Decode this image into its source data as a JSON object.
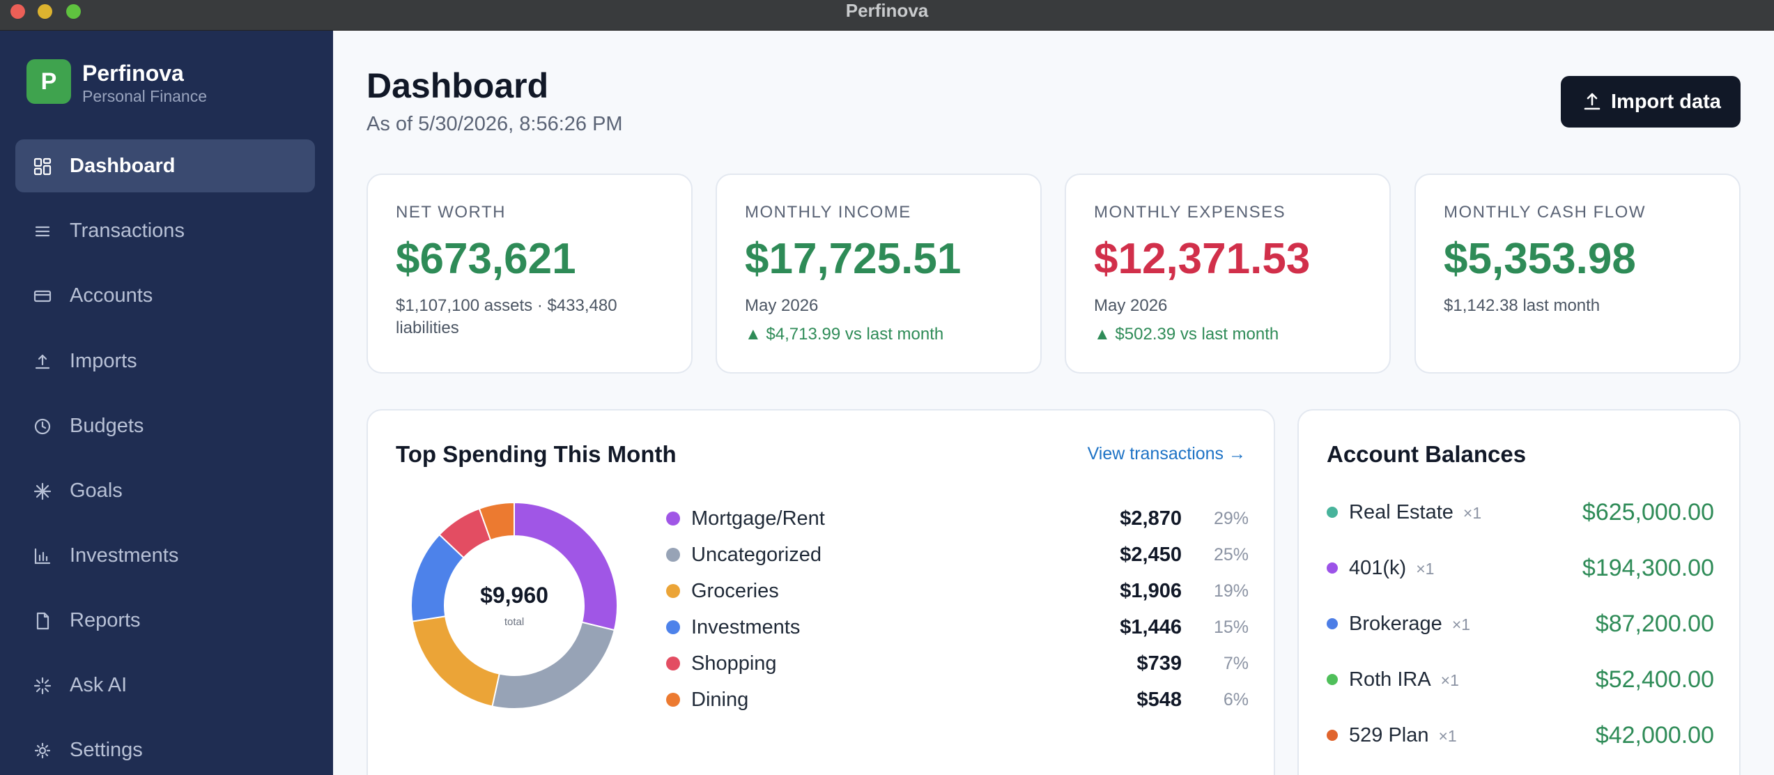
{
  "window": {
    "title": "Perfinova"
  },
  "brand": {
    "logo_letter": "P",
    "name": "Perfinova",
    "subtitle": "Personal Finance"
  },
  "sidebar": {
    "items": [
      {
        "label": "Dashboard",
        "icon": "grid-icon",
        "active": true
      },
      {
        "label": "Transactions",
        "icon": "list-icon"
      },
      {
        "label": "Accounts",
        "icon": "card-icon"
      },
      {
        "label": "Imports",
        "icon": "upload-icon"
      },
      {
        "label": "Budgets",
        "icon": "clock-icon"
      },
      {
        "label": "Goals",
        "icon": "asterisk-icon"
      },
      {
        "label": "Investments",
        "icon": "bar-chart-icon"
      },
      {
        "label": "Reports",
        "icon": "document-icon"
      },
      {
        "label": "Ask AI",
        "icon": "sparkle-icon"
      },
      {
        "label": "Settings",
        "icon": "gear-icon"
      }
    ]
  },
  "header": {
    "title": "Dashboard",
    "as_of": "As of 5/30/2026, 8:56:26 PM",
    "import_button": "Import data"
  },
  "kpis": [
    {
      "label": "NET WORTH",
      "value": "$673,621",
      "sub": "$1,107,100 assets · $433,480 liabilities",
      "delta": "",
      "color": "#2e8b57"
    },
    {
      "label": "MONTHLY INCOME",
      "value": "$17,725.51",
      "sub": "May 2026",
      "delta": "▲ $4,713.99 vs last month",
      "color": "#2e8b57"
    },
    {
      "label": "MONTHLY EXPENSES",
      "value": "$12,371.53",
      "sub": "May 2026",
      "delta": "▲ $502.39 vs last month",
      "color": "#d12f4a"
    },
    {
      "label": "MONTHLY CASH FLOW",
      "value": "$5,353.98",
      "sub": "$1,142.38 last month",
      "delta": "",
      "color": "#2e8b57"
    }
  ],
  "spending": {
    "title": "Top Spending This Month",
    "view_link": "View transactions →",
    "total": "$9,960",
    "total_caption": "total",
    "categories": [
      {
        "name": "Mortgage/Rent",
        "amount": "$2,870",
        "pct": "29%",
        "value": 2870,
        "color": "#a056e6"
      },
      {
        "name": "Uncategorized",
        "amount": "$2,450",
        "pct": "25%",
        "value": 2450,
        "color": "#97a3b6"
      },
      {
        "name": "Groceries",
        "amount": "$1,906",
        "pct": "19%",
        "value": 1906,
        "color": "#eba437"
      },
      {
        "name": "Investments",
        "amount": "$1,446",
        "pct": "15%",
        "value": 1446,
        "color": "#4d82ea"
      },
      {
        "name": "Shopping",
        "amount": "$739",
        "pct": "7%",
        "value": 739,
        "color": "#e34d62"
      },
      {
        "name": "Dining",
        "amount": "$548",
        "pct": "6%",
        "value": 548,
        "color": "#ec7a30"
      }
    ]
  },
  "balances": {
    "title": "Account Balances",
    "accounts": [
      {
        "name": "Real Estate",
        "count": "×1",
        "amount": "$625,000.00",
        "color": "#48b39b"
      },
      {
        "name": "401(k)",
        "count": "×1",
        "amount": "$194,300.00",
        "color": "#9c53e8"
      },
      {
        "name": "Brokerage",
        "count": "×1",
        "amount": "$87,200.00",
        "color": "#4d7ee6"
      },
      {
        "name": "Roth IRA",
        "count": "×1",
        "amount": "$52,400.00",
        "color": "#4fbf5a"
      },
      {
        "name": "529 Plan",
        "count": "×1",
        "amount": "$42,000.00",
        "color": "#e0642d"
      }
    ]
  }
}
